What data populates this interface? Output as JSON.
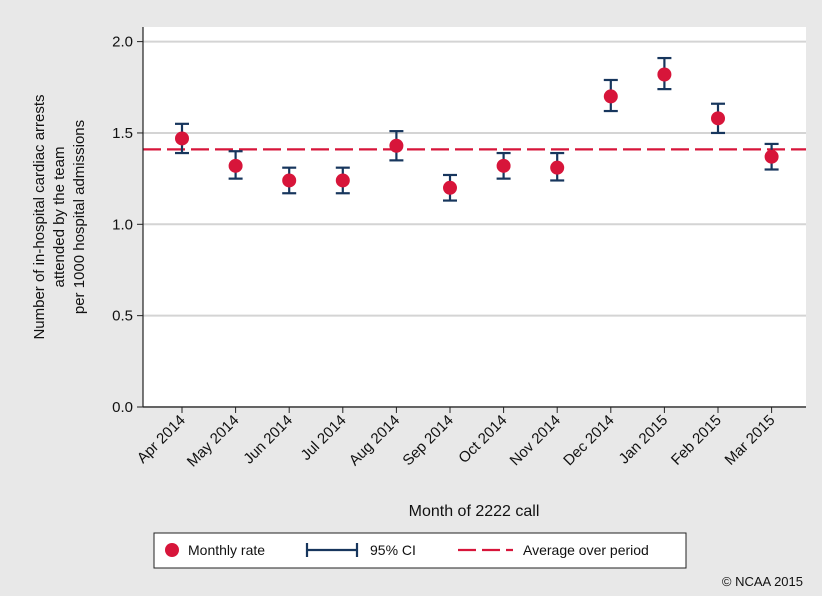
{
  "chart_data": {
    "type": "scatter",
    "xlabel": "Month of 2222 call",
    "ylabel_lines": [
      "Number of in-hospital cardiac arrests",
      "attended by the team",
      "per 1000 hospital admissions"
    ],
    "categories": [
      "Apr 2014",
      "May 2014",
      "Jun 2014",
      "Jul 2014",
      "Aug 2014",
      "Sep 2014",
      "Oct 2014",
      "Nov 2014",
      "Dec 2014",
      "Jan 2015",
      "Feb 2015",
      "Mar 2015"
    ],
    "y_ticks": [
      "0.0",
      "0.5",
      "1.0",
      "1.5",
      "2.0"
    ],
    "ylim": [
      0,
      2.08
    ],
    "grid": true,
    "series": [
      {
        "name": "Monthly rate",
        "kind": "point",
        "color": "#d7153a",
        "values": [
          1.47,
          1.32,
          1.24,
          1.24,
          1.43,
          1.2,
          1.32,
          1.31,
          1.7,
          1.82,
          1.58,
          1.37
        ]
      },
      {
        "name": "95% CI",
        "kind": "errorbar",
        "color": "#17365d",
        "lower": [
          1.39,
          1.25,
          1.17,
          1.17,
          1.35,
          1.13,
          1.25,
          1.24,
          1.62,
          1.74,
          1.5,
          1.3
        ],
        "upper": [
          1.55,
          1.4,
          1.31,
          1.31,
          1.51,
          1.27,
          1.39,
          1.39,
          1.79,
          1.91,
          1.66,
          1.44
        ]
      },
      {
        "name": "Average over period",
        "kind": "reference-line",
        "color": "#d7153a",
        "value": 1.41
      }
    ],
    "legend_position": "bottom",
    "credit": "© NCAA 2015"
  }
}
